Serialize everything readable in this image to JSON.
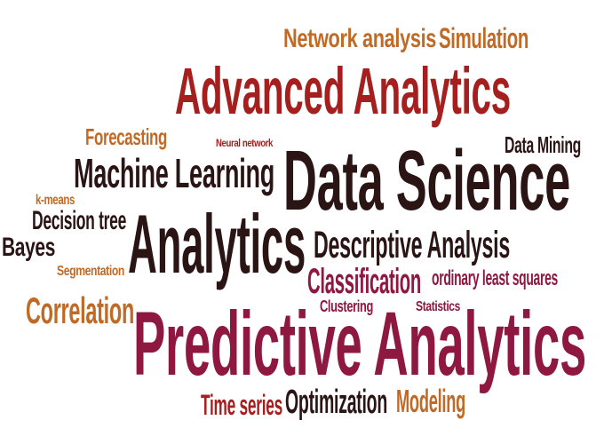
{
  "word_cloud": {
    "palette": {
      "dark": "#2a1414",
      "red": "#a51f1f",
      "crimson": "#8e1840",
      "orange": "#c06a26",
      "brown": "#4a2a1e"
    },
    "words": {
      "network_analysis": {
        "text": "Network analysis",
        "color": "#c06a26"
      },
      "simulation": {
        "text": "Simulation",
        "color": "#c06a26"
      },
      "advanced_analytics": {
        "text": "Advanced Analytics",
        "color": "#a51f1f"
      },
      "forecasting": {
        "text": "Forecasting",
        "color": "#c06a26"
      },
      "neural_network": {
        "text": "Neural network",
        "color": "#a51f1f"
      },
      "data_mining": {
        "text": "Data Mining",
        "color": "#2a1414"
      },
      "machine_learning": {
        "text": "Machine Learning",
        "color": "#2a1414"
      },
      "data_science": {
        "text": "Data Science",
        "color": "#2a1414"
      },
      "k_means": {
        "text": "k-means",
        "color": "#c06a26"
      },
      "decision_tree": {
        "text": "Decision tree",
        "color": "#2a1414"
      },
      "bayes": {
        "text": "Bayes",
        "color": "#2a1414"
      },
      "analytics": {
        "text": "Analytics",
        "color": "#2a1414"
      },
      "descriptive_analysis": {
        "text": "Descriptive Analysis",
        "color": "#2a1414"
      },
      "segmentation": {
        "text": "Segmentation",
        "color": "#c06a26"
      },
      "classification": {
        "text": "Classification",
        "color": "#8e1840"
      },
      "ordinary_least_squares": {
        "text": "ordinary least squares",
        "color": "#8e1840"
      },
      "correlation": {
        "text": "Correlation",
        "color": "#c06a26"
      },
      "clustering": {
        "text": "Clustering",
        "color": "#8e1840"
      },
      "statistics": {
        "text": "Statistics",
        "color": "#8e1840"
      },
      "predictive_analytics": {
        "text": "Predictive Analytics",
        "color": "#8e1840"
      },
      "time_series": {
        "text": "Time series",
        "color": "#a51f1f"
      },
      "optimization": {
        "text": "Optimization",
        "color": "#2a1414"
      },
      "modeling": {
        "text": "Modeling",
        "color": "#c06a26"
      }
    }
  }
}
